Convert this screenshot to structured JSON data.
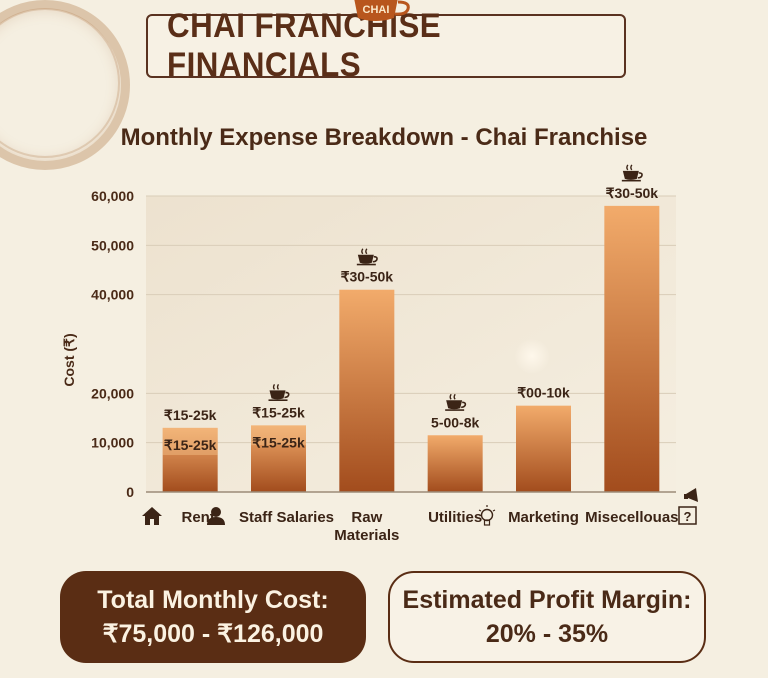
{
  "header": {
    "badge": "CHAI",
    "title": "CHAI FRANCHISE FINANCIALS"
  },
  "chart_data": {
    "type": "bar",
    "title": "Monthly Expense Breakdown - Chai Franchise",
    "ylabel": "Cost (₹)",
    "xlabel": "",
    "ylim": [
      0,
      60000
    ],
    "ticks": [
      {
        "value": 0,
        "label": "0"
      },
      {
        "value": 10000,
        "label": "10,000"
      },
      {
        "value": 20000,
        "label": "20,000"
      },
      {
        "value": 40000,
        "label": "40,000"
      },
      {
        "value": 50000,
        "label": "50,000"
      },
      {
        "value": 60000,
        "label": "60,000"
      }
    ],
    "grid": true,
    "categories": [
      "Rent",
      "Staff Salaries",
      "Raw Materials",
      "Utilities",
      "Marketing",
      "Misecellouas"
    ],
    "category_lines": [
      [
        "Rent"
      ],
      [
        "Staff Salaries"
      ],
      [
        "Raw",
        "Materials"
      ],
      [
        "Utilities"
      ],
      [
        "Marketing"
      ],
      [
        "Misecellouas"
      ]
    ],
    "category_icons": [
      "home-icon",
      "person-icon",
      "",
      "",
      "lightbulb-icon",
      "question-icon"
    ],
    "values": [
      13000,
      13500,
      41000,
      11500,
      17500,
      58000
    ],
    "inner_values": [
      7500,
      9500,
      null,
      null,
      null,
      null
    ],
    "labels": [
      "₹15-25k",
      "₹15-25k",
      "₹30-50k",
      "5-00-8k",
      "₹00-10k",
      "₹30-50k"
    ],
    "inner_labels": [
      "₹15-25k",
      "₹15-25k",
      "",
      "",
      "",
      ""
    ],
    "label_icons": [
      false,
      true,
      true,
      true,
      false,
      true
    ]
  },
  "summary": {
    "total_label": "Total Monthly Cost:",
    "total_value": "₹75,000 - ₹126,000",
    "margin_label": "Estimated Profit Margin:",
    "margin_value": "20% - 35%"
  },
  "colors": {
    "dark_brown": "#5a2d14",
    "bar_top": "#f0a867",
    "bar_bottom": "#a9501f",
    "text": "#4a2a17"
  }
}
